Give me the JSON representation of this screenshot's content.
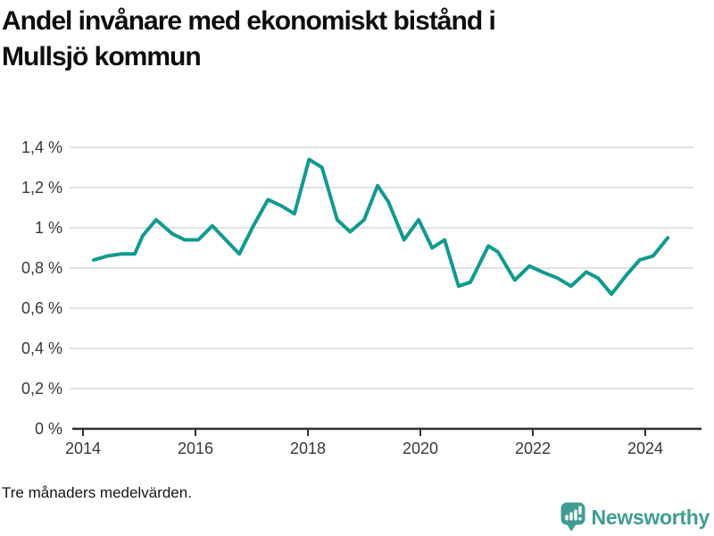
{
  "header": {
    "title": "Andel invånare med ekonomiskt bistånd i Mullsjö kommun",
    "title_line1": "Andel invånare med ekonomiskt bistånd i",
    "title_line2": "Mullsjö kommun"
  },
  "footer": {
    "note": "Tre månaders medelvärden.",
    "brand": "Newsworthy"
  },
  "style": {
    "line_color": "#119a8e",
    "grid_color": "#d9d9d9",
    "axis_color": "#2f2f2f",
    "tick_label_color": "#383838",
    "title_color": "#0d0d0d",
    "brand_color": "#3f9c94",
    "background": "#ffffff"
  },
  "chart_data": {
    "type": "line",
    "title": "Andel invånare med ekonomiskt bistånd i Mullsjö kommun",
    "subtitle_note": "Tre månaders medelvärden.",
    "series_name": "Andel invånare med ekonomiskt bistånd",
    "unit": "%",
    "decimal_separator": ",",
    "grid": "horizontal",
    "legend": "none",
    "ylim": [
      0,
      1.4
    ],
    "xlim": [
      2013.76,
      2025.1
    ],
    "y_ticks": [
      0,
      0.2,
      0.4,
      0.6,
      0.8,
      1.0,
      1.2,
      1.4
    ],
    "y_tick_labels": [
      "0 %",
      "0,2 %",
      "0,4 %",
      "0,6 %",
      "0,8 %",
      "1 %",
      "1,2 %",
      "1,4 %"
    ],
    "x_ticks": [
      2014,
      2016,
      2018,
      2020,
      2022,
      2024
    ],
    "x_tick_labels": [
      "2014",
      "2016",
      "2018",
      "2020",
      "2022",
      "2024"
    ],
    "x": [
      2014.19,
      2014.44,
      2014.68,
      2014.92,
      2015.06,
      2015.3,
      2015.59,
      2015.81,
      2016.05,
      2016.3,
      2016.54,
      2016.78,
      2017.03,
      2017.29,
      2017.52,
      2017.76,
      2018.02,
      2018.25,
      2018.52,
      2018.75,
      2019.0,
      2019.24,
      2019.43,
      2019.71,
      2019.97,
      2020.21,
      2020.43,
      2020.68,
      2020.89,
      2021.21,
      2021.38,
      2021.68,
      2021.94,
      2022.17,
      2022.44,
      2022.68,
      2022.95,
      2023.16,
      2023.4,
      2023.65,
      2023.9,
      2024.14,
      2024.4
    ],
    "values": [
      0.84,
      0.86,
      0.87,
      0.87,
      0.96,
      1.04,
      0.97,
      0.94,
      0.94,
      1.01,
      0.94,
      0.87,
      1.01,
      1.14,
      1.11,
      1.07,
      1.34,
      1.3,
      1.04,
      0.98,
      1.04,
      1.21,
      1.13,
      0.94,
      1.04,
      0.9,
      0.94,
      0.71,
      0.73,
      0.91,
      0.88,
      0.74,
      0.81,
      0.78,
      0.75,
      0.71,
      0.78,
      0.75,
      0.67,
      0.76,
      0.84,
      0.86,
      0.95
    ]
  }
}
